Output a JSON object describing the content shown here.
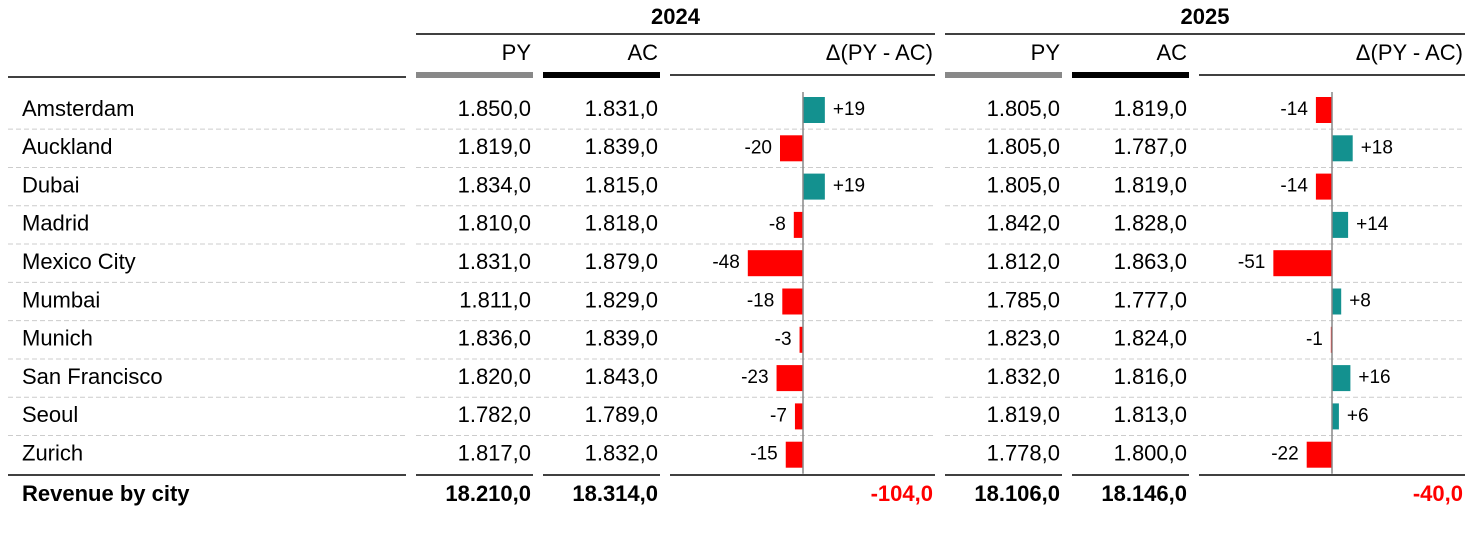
{
  "header": {
    "years": [
      "2024",
      "2025"
    ],
    "columns": [
      "PY",
      "AC",
      "Δ(PY - AC)"
    ]
  },
  "colors": {
    "positive": "#13918f",
    "negative": "#ff0000"
  },
  "rows": [
    {
      "label": "Amsterdam",
      "years": [
        {
          "py": "1.850,0",
          "ac": "1.831,0",
          "delta": 19,
          "delta_label": "+19"
        },
        {
          "py": "1.805,0",
          "ac": "1.819,0",
          "delta": -14,
          "delta_label": "-14"
        }
      ]
    },
    {
      "label": "Auckland",
      "years": [
        {
          "py": "1.819,0",
          "ac": "1.839,0",
          "delta": -20,
          "delta_label": "-20"
        },
        {
          "py": "1.805,0",
          "ac": "1.787,0",
          "delta": 18,
          "delta_label": "+18"
        }
      ]
    },
    {
      "label": "Dubai",
      "years": [
        {
          "py": "1.834,0",
          "ac": "1.815,0",
          "delta": 19,
          "delta_label": "+19"
        },
        {
          "py": "1.805,0",
          "ac": "1.819,0",
          "delta": -14,
          "delta_label": "-14"
        }
      ]
    },
    {
      "label": "Madrid",
      "years": [
        {
          "py": "1.810,0",
          "ac": "1.818,0",
          "delta": -8,
          "delta_label": "-8"
        },
        {
          "py": "1.842,0",
          "ac": "1.828,0",
          "delta": 14,
          "delta_label": "+14"
        }
      ]
    },
    {
      "label": "Mexico City",
      "years": [
        {
          "py": "1.831,0",
          "ac": "1.879,0",
          "delta": -48,
          "delta_label": "-48"
        },
        {
          "py": "1.812,0",
          "ac": "1.863,0",
          "delta": -51,
          "delta_label": "-51"
        }
      ]
    },
    {
      "label": "Mumbai",
      "years": [
        {
          "py": "1.811,0",
          "ac": "1.829,0",
          "delta": -18,
          "delta_label": "-18"
        },
        {
          "py": "1.785,0",
          "ac": "1.777,0",
          "delta": 8,
          "delta_label": "+8"
        }
      ]
    },
    {
      "label": "Munich",
      "years": [
        {
          "py": "1.836,0",
          "ac": "1.839,0",
          "delta": -3,
          "delta_label": "-3"
        },
        {
          "py": "1.823,0",
          "ac": "1.824,0",
          "delta": -1,
          "delta_label": "-1"
        }
      ]
    },
    {
      "label": "San Francisco",
      "years": [
        {
          "py": "1.820,0",
          "ac": "1.843,0",
          "delta": -23,
          "delta_label": "-23"
        },
        {
          "py": "1.832,0",
          "ac": "1.816,0",
          "delta": 16,
          "delta_label": "+16"
        }
      ]
    },
    {
      "label": "Seoul",
      "years": [
        {
          "py": "1.782,0",
          "ac": "1.789,0",
          "delta": -7,
          "delta_label": "-7"
        },
        {
          "py": "1.819,0",
          "ac": "1.813,0",
          "delta": 6,
          "delta_label": "+6"
        }
      ]
    },
    {
      "label": "Zurich",
      "years": [
        {
          "py": "1.817,0",
          "ac": "1.832,0",
          "delta": -15,
          "delta_label": "-15"
        },
        {
          "py": "1.778,0",
          "ac": "1.800,0",
          "delta": -22,
          "delta_label": "-22"
        }
      ]
    }
  ],
  "total": {
    "label": "Revenue by city",
    "years": [
      {
        "py": "18.210,0",
        "ac": "18.314,0",
        "delta": "-104,0"
      },
      {
        "py": "18.106,0",
        "ac": "18.146,0",
        "delta": "-40,0"
      }
    ]
  }
}
